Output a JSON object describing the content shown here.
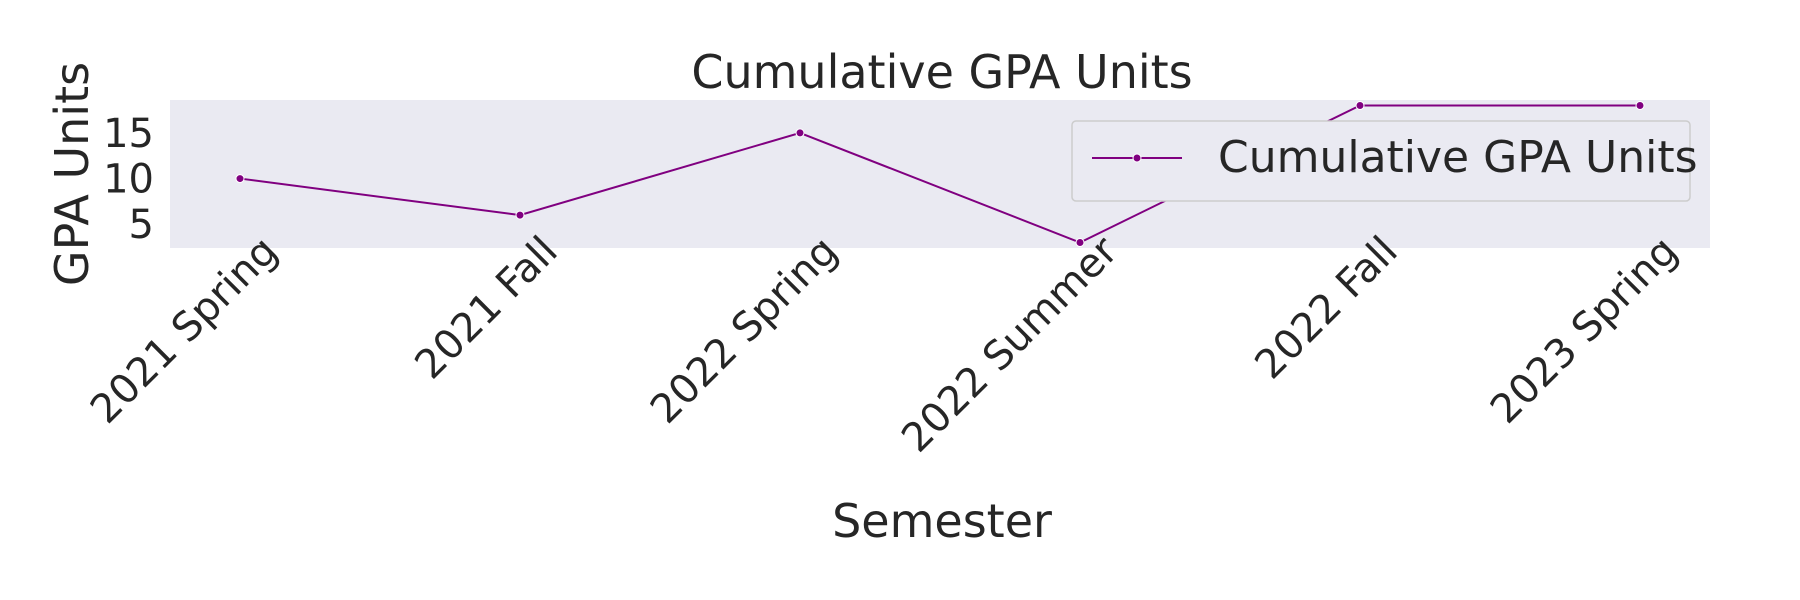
{
  "chart_data": {
    "type": "line",
    "title": "Cumulative GPA Units",
    "xlabel": "Semester",
    "ylabel": "GPA Units",
    "categories": [
      "2021 Spring",
      "2021 Fall",
      "2022 Spring",
      "2022 Summer",
      "2022 Fall",
      "2023 Spring"
    ],
    "series": [
      {
        "name": "Cumulative GPA Units",
        "values": [
          10,
          6,
          15,
          3,
          18,
          18
        ]
      }
    ],
    "yticks": [
      5,
      10,
      15
    ],
    "ylim": [
      2.4,
      18.6
    ],
    "grid": false,
    "legend": "top-right",
    "colors": {
      "line": "#800080",
      "plot_bg": "#eaeaf2",
      "text": "#262626"
    }
  }
}
